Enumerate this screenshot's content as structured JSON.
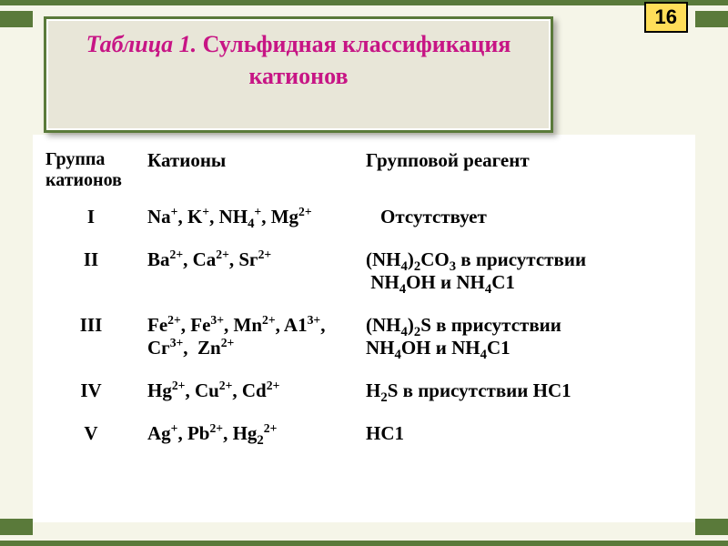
{
  "page_number": "16",
  "title": {
    "prefix": "Таблица 1. ",
    "main": "Сульфидная классификация катионов"
  },
  "colors": {
    "frame": "#5a7a3a",
    "title_text": "#c71585",
    "badge_bg": "#ffde59",
    "page_bg": "#f5f5e8",
    "title_bg": "#e8e6d8",
    "table_bg": "#ffffff",
    "text": "#000000"
  },
  "table": {
    "headers": {
      "group": "Группа катионов",
      "cations": "Катионы",
      "reagent": "Групповой реагент"
    },
    "rows": [
      {
        "group": "I",
        "cations_html": "Na<sup>+</sup>, K<sup>+</sup>, NH<sub>4</sub><sup>+</sup>, Mg<sup>2+</sup>",
        "reagent_html": "Отсутствует"
      },
      {
        "group": "II",
        "cations_html": "Ba<sup>2+</sup>, Ca<sup>2+</sup>, Sг<sup>2+</sup>",
        "reagent_html": "(NH<sub>4</sub>)<sub>2</sub>CO<sub>3</sub> в присутствии<span class=\"reagent-line2\">&nbsp;NH<sub>4</sub>OH и NH<sub>4</sub>C1</span>"
      },
      {
        "group": "III",
        "cations_html": "Fe<sup>2+</sup>, Fe<sup>3+</sup>, Mn<sup>2+</sup>, A1<sup>3+</sup>, Cг<sup>3+</sup>,&nbsp;&nbsp;Zn<sup>2+</sup>",
        "reagent_html": "(NH<sub>4</sub>)<sub>2</sub>S в присутствии<span class=\"reagent-line2\">NH<sub>4</sub>OH и NH<sub>4</sub>C1</span>"
      },
      {
        "group": "IV",
        "cations_html": "Hg<sup>2+</sup>, Cu<sup>2+</sup>, Cd<sup>2+</sup>",
        "reagent_html": "H<sub>2</sub>S в присутствии HC1"
      },
      {
        "group": "V",
        "cations_html": "Ag<sup>+</sup>, Pb<sup>2+</sup>, Hg<sub>2</sub><sup>2+</sup>",
        "reagent_html": "HC1"
      }
    ]
  }
}
